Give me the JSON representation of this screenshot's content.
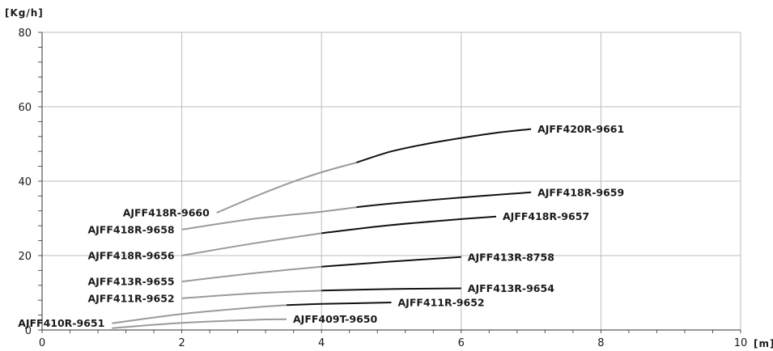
{
  "chart_data": {
    "type": "line",
    "title": "",
    "xlabel": "[m]",
    "ylabel": "[Kg/h]",
    "xlim": [
      0,
      10
    ],
    "ylim": [
      0,
      80
    ],
    "x_ticks": [
      "0",
      "2",
      "4",
      "6",
      "8",
      "10"
    ],
    "y_ticks": [
      "0",
      "20",
      "40",
      "60",
      "80"
    ],
    "grid": true,
    "legend": "inline labels",
    "colors": {
      "gray": "#9a9a9a",
      "black": "#111111",
      "grid": "#bdbdbd"
    },
    "series": [
      {
        "name": "AJFF420R-9661",
        "label_side": "right",
        "gray_x": [
          2.5,
          3.0,
          3.5,
          4.0,
          4.5
        ],
        "gray_y": [
          31.5,
          35.5,
          39.2,
          42.4,
          45.0
        ],
        "black_x": [
          4.5,
          5.0,
          5.5,
          6.0,
          6.5,
          7.0
        ],
        "black_y": [
          45.0,
          48.0,
          50.0,
          51.6,
          53.0,
          54.0
        ]
      },
      {
        "name": "AJFF418R-9660",
        "label_side": "left",
        "gray_x": [
          2.5
        ],
        "gray_y": [
          31.5
        ],
        "black_x": [],
        "black_y": []
      },
      {
        "name": "AJFF418R-9659",
        "label_side": "right",
        "gray_x": [
          2.0,
          3.0,
          4.0,
          4.5
        ],
        "gray_y": [
          27.0,
          29.8,
          31.8,
          33.0
        ],
        "black_x": [
          4.5,
          5.0,
          6.0,
          7.0
        ],
        "black_y": [
          33.0,
          34.0,
          35.6,
          37.0
        ]
      },
      {
        "name": "AJFF418R-9658",
        "label_side": "left",
        "gray_x": [
          2.0
        ],
        "gray_y": [
          27.0
        ],
        "black_x": [],
        "black_y": []
      },
      {
        "name": "AJFF418R-9657",
        "label_side": "right",
        "gray_x": [
          2.0,
          3.0,
          4.0
        ],
        "gray_y": [
          20.0,
          23.2,
          26.0
        ],
        "black_x": [
          4.0,
          5.0,
          6.0,
          6.5
        ],
        "black_y": [
          26.0,
          28.2,
          29.8,
          30.5
        ]
      },
      {
        "name": "AJFF418R-9656",
        "label_side": "left",
        "gray_x": [
          2.0
        ],
        "gray_y": [
          20.0
        ],
        "black_x": [],
        "black_y": []
      },
      {
        "name": "AJFF413R-8758",
        "label_side": "right",
        "gray_x": [
          2.0,
          3.0,
          4.0
        ],
        "gray_y": [
          13.0,
          15.2,
          17.0
        ],
        "black_x": [
          4.0,
          5.0,
          6.0
        ],
        "black_y": [
          17.0,
          18.4,
          19.6
        ]
      },
      {
        "name": "AJFF413R-9655",
        "label_side": "left",
        "gray_x": [
          2.0
        ],
        "gray_y": [
          13.0
        ],
        "black_x": [],
        "black_y": []
      },
      {
        "name": "AJFF413R-9654",
        "label_side": "right",
        "gray_x": [
          2.0,
          3.0,
          4.0
        ],
        "gray_y": [
          8.5,
          9.8,
          10.6
        ],
        "black_x": [
          4.0,
          5.0,
          6.0
        ],
        "black_y": [
          10.6,
          11.0,
          11.2
        ]
      },
      {
        "name": "AJFF411R-9652",
        "label_side": "left",
        "gray_x": [
          2.0
        ],
        "gray_y": [
          8.5
        ],
        "black_x": [],
        "black_y": []
      },
      {
        "name": "AJFF411R-9652",
        "label_side": "right",
        "gray_x": [
          1.0,
          2.0,
          3.0,
          3.5
        ],
        "gray_y": [
          1.8,
          4.3,
          6.0,
          6.7
        ],
        "black_x": [
          3.5,
          4.0,
          5.0
        ],
        "black_y": [
          6.7,
          7.0,
          7.4
        ]
      },
      {
        "name": "AJFF410R-9651",
        "label_side": "left",
        "gray_x": [
          1.0
        ],
        "gray_y": [
          1.8
        ],
        "black_x": [],
        "black_y": []
      },
      {
        "name": "AJFF409T-9650",
        "label_side": "right",
        "gray_x": [
          1.0,
          2.0,
          3.0,
          3.5
        ],
        "gray_y": [
          0.5,
          1.9,
          2.7,
          2.9
        ],
        "black_x": [],
        "black_y": []
      }
    ]
  }
}
